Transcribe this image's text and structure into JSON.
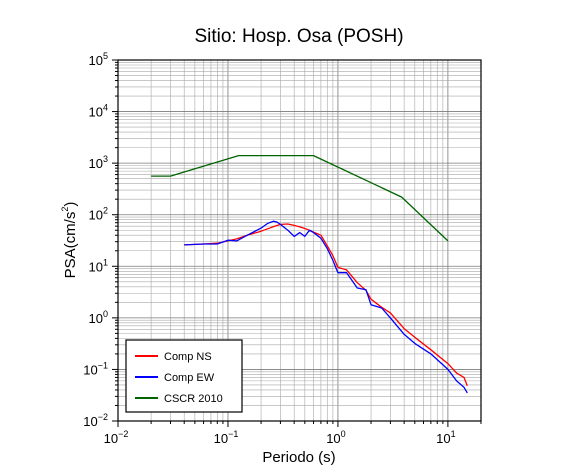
{
  "chart_data": {
    "type": "line",
    "title": "Sitio: Hosp. Osa (POSH)",
    "xlabel": "Periodo (s)",
    "ylabel": "PSA(cm/s",
    "ylabel_sup": "2",
    "ylabel_close": ")",
    "x_scale": "log",
    "y_scale": "log",
    "xlim": [
      0.01,
      20
    ],
    "ylim": [
      0.01,
      100000
    ],
    "grid": true,
    "legend_position": "bottom-left",
    "x_ticks": [
      {
        "base": "10",
        "exp": "−2",
        "value": 0.01
      },
      {
        "base": "10",
        "exp": "−1",
        "value": 0.1
      },
      {
        "base": "10",
        "exp": "0",
        "value": 1
      },
      {
        "base": "10",
        "exp": "1",
        "value": 10
      }
    ],
    "y_ticks": [
      {
        "base": "10",
        "exp": "−2",
        "value": 0.01
      },
      {
        "base": "10",
        "exp": "−1",
        "value": 0.1
      },
      {
        "base": "10",
        "exp": "0",
        "value": 1
      },
      {
        "base": "10",
        "exp": "1",
        "value": 10
      },
      {
        "base": "10",
        "exp": "2",
        "value": 100
      },
      {
        "base": "10",
        "exp": "3",
        "value": 1000
      },
      {
        "base": "10",
        "exp": "4",
        "value": 10000
      },
      {
        "base": "10",
        "exp": "5",
        "value": 100000
      }
    ],
    "series": [
      {
        "name": "Comp NS",
        "color": "#ff0000",
        "x": [
          0.04,
          0.06,
          0.08,
          0.1,
          0.12,
          0.15,
          0.2,
          0.25,
          0.3,
          0.35,
          0.4,
          0.45,
          0.5,
          0.55,
          0.6,
          0.7,
          0.8,
          0.9,
          1.0,
          1.2,
          1.5,
          1.8,
          2.0,
          2.5,
          3.0,
          4.0,
          5.0,
          7.0,
          10.0,
          12.0,
          14.0,
          15.0
        ],
        "y": [
          26,
          27,
          28,
          31,
          34,
          40,
          48,
          57,
          65,
          66,
          62,
          58,
          54,
          50,
          46,
          40,
          25,
          16,
          9.5,
          8.5,
          4.8,
          3.4,
          2.3,
          1.6,
          1.25,
          0.62,
          0.42,
          0.24,
          0.13,
          0.085,
          0.07,
          0.048
        ]
      },
      {
        "name": "Comp EW",
        "color": "#0000ff",
        "x": [
          0.04,
          0.06,
          0.08,
          0.1,
          0.12,
          0.15,
          0.2,
          0.23,
          0.26,
          0.28,
          0.3,
          0.35,
          0.4,
          0.45,
          0.5,
          0.55,
          0.6,
          0.7,
          0.8,
          0.9,
          1.0,
          1.2,
          1.5,
          1.8,
          2.0,
          2.5,
          3.0,
          4.0,
          5.0,
          7.0,
          10.0,
          12.0,
          14.0,
          15.0
        ],
        "y": [
          26,
          27,
          27,
          32,
          31,
          40,
          55,
          68,
          75,
          72,
          65,
          50,
          38,
          45,
          38,
          50,
          45,
          35,
          22,
          13,
          7.5,
          7.5,
          3.8,
          3.5,
          1.8,
          1.55,
          1.0,
          0.48,
          0.32,
          0.2,
          0.1,
          0.06,
          0.045,
          0.035
        ]
      },
      {
        "name": "CSCR 2010",
        "color": "#006400",
        "x": [
          0.02,
          0.03,
          0.125,
          0.6,
          3.8,
          10.0
        ],
        "y": [
          560,
          560,
          1400,
          1400,
          220,
          31
        ]
      }
    ]
  }
}
